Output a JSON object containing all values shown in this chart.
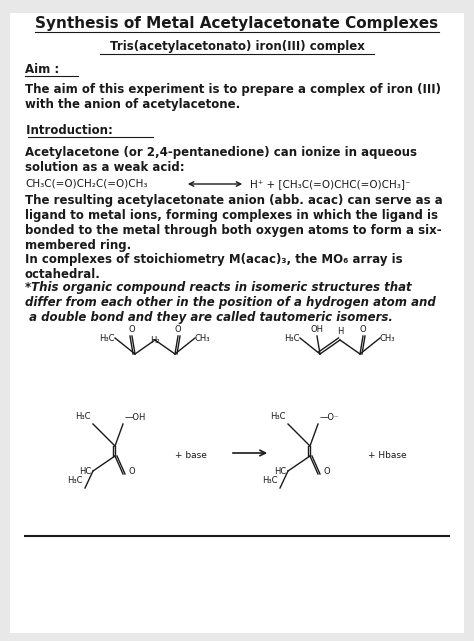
{
  "bg_color": "#e8e8e8",
  "page_bg": "#ffffff",
  "title": "Synthesis of Metal Acetylacetonate Complexes",
  "subtitle": "Tris(acetylacetonato) iron(III) complex",
  "aim_label": "Aim :",
  "aim_text": "The aim of this experiment is to prepare a complex of iron (III)\nwith the anion of acetylacetone.",
  "intro_label": " Introduction:",
  "intro_text1": "Acetylacetone (or 2,4-pentanedione) can ionize in aqueous\nsolution as a weak acid:",
  "equation_left": "CH₃C(=O)CH₂C(=O)CH₃",
  "equation_right": "H⁺ + [CH₃C(=O)CHC(=O)CH₃]⁻",
  "para1": "The resulting acetylacetonate anion (abb. acac) can serve as a\nligand to metal ions, forming complexes in which the ligand is\nbonded to the metal through both oxygen atoms to form a six-\nmembered ring.",
  "para2": "In complexes of stoichiometry M(acac)₃, the MO₆ array is\noctahedral.",
  "para3": "*This organic compound reacts in isomeric structures that\ndiffer from each other in the position of a hydrogen atom and\n a double bond and they are called tautomeric isomers.",
  "text_color": "#1a1a1a",
  "font_size_title": 11,
  "font_size_body": 8.5,
  "font_size_eq": 7.5,
  "font_size_mol": 6.0
}
